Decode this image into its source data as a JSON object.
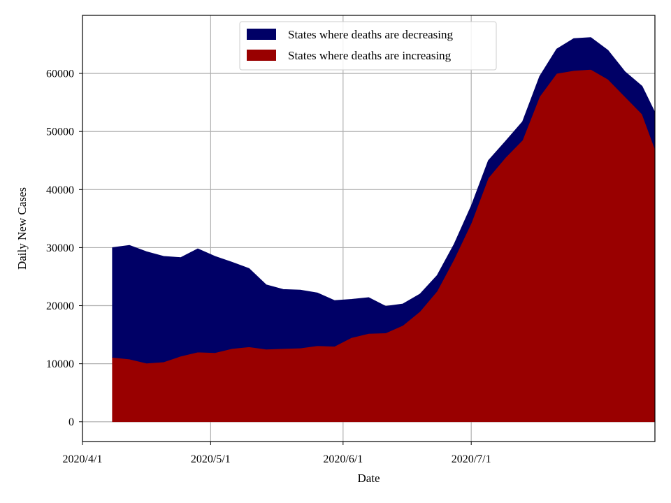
{
  "chart_data": {
    "type": "area",
    "stacked": true,
    "xlabel": "Date",
    "ylabel": "Daily New Cases",
    "x_axis": {
      "type": "date",
      "range": [
        "2020-04-01",
        "2020-08-13"
      ],
      "ticks": [
        "2020-04-01",
        "2020-05-01",
        "2020-06-01",
        "2020-07-01"
      ],
      "tick_labels": [
        "2020/4/1",
        "2020/5/1",
        "2020/6/1",
        "2020/7/1"
      ]
    },
    "y_axis": {
      "range": [
        -3400,
        70000
      ],
      "ticks": [
        0,
        10000,
        20000,
        30000,
        40000,
        50000,
        60000
      ]
    },
    "grid": true,
    "legend_position": "top-center",
    "x": [
      "2020-04-08",
      "2020-04-12",
      "2020-04-16",
      "2020-04-20",
      "2020-04-24",
      "2020-04-28",
      "2020-05-02",
      "2020-05-06",
      "2020-05-10",
      "2020-05-14",
      "2020-05-18",
      "2020-05-22",
      "2020-05-26",
      "2020-05-30",
      "2020-06-03",
      "2020-06-07",
      "2020-06-11",
      "2020-06-15",
      "2020-06-19",
      "2020-06-23",
      "2020-06-27",
      "2020-07-01",
      "2020-07-05",
      "2020-07-09",
      "2020-07-13",
      "2020-07-17",
      "2020-07-21",
      "2020-07-25",
      "2020-07-29",
      "2020-08-02",
      "2020-08-06",
      "2020-08-10",
      "2020-08-13"
    ],
    "series": [
      {
        "name": "States where deaths are increasing",
        "color": "#990000",
        "values": [
          11100,
          10800,
          10100,
          10300,
          11300,
          12000,
          11900,
          12600,
          12900,
          12500,
          12600,
          12700,
          13100,
          13000,
          14500,
          15200,
          15300,
          16600,
          19000,
          22500,
          28000,
          34200,
          42000,
          45500,
          48500,
          56000,
          60000,
          60500,
          60700,
          59000,
          56000,
          53000,
          47000
        ]
      },
      {
        "name": "States where deaths are decreasing",
        "color": "#000066",
        "values": [
          18900,
          19600,
          19200,
          18200,
          17000,
          17800,
          16600,
          14900,
          13500,
          11100,
          10200,
          10000,
          9100,
          7900,
          6600,
          6200,
          4600,
          3700,
          3000,
          2700,
          2600,
          3000,
          3000,
          2800,
          3200,
          3500,
          4200,
          5500,
          5500,
          5000,
          4300,
          4800,
          6300
        ]
      }
    ]
  }
}
